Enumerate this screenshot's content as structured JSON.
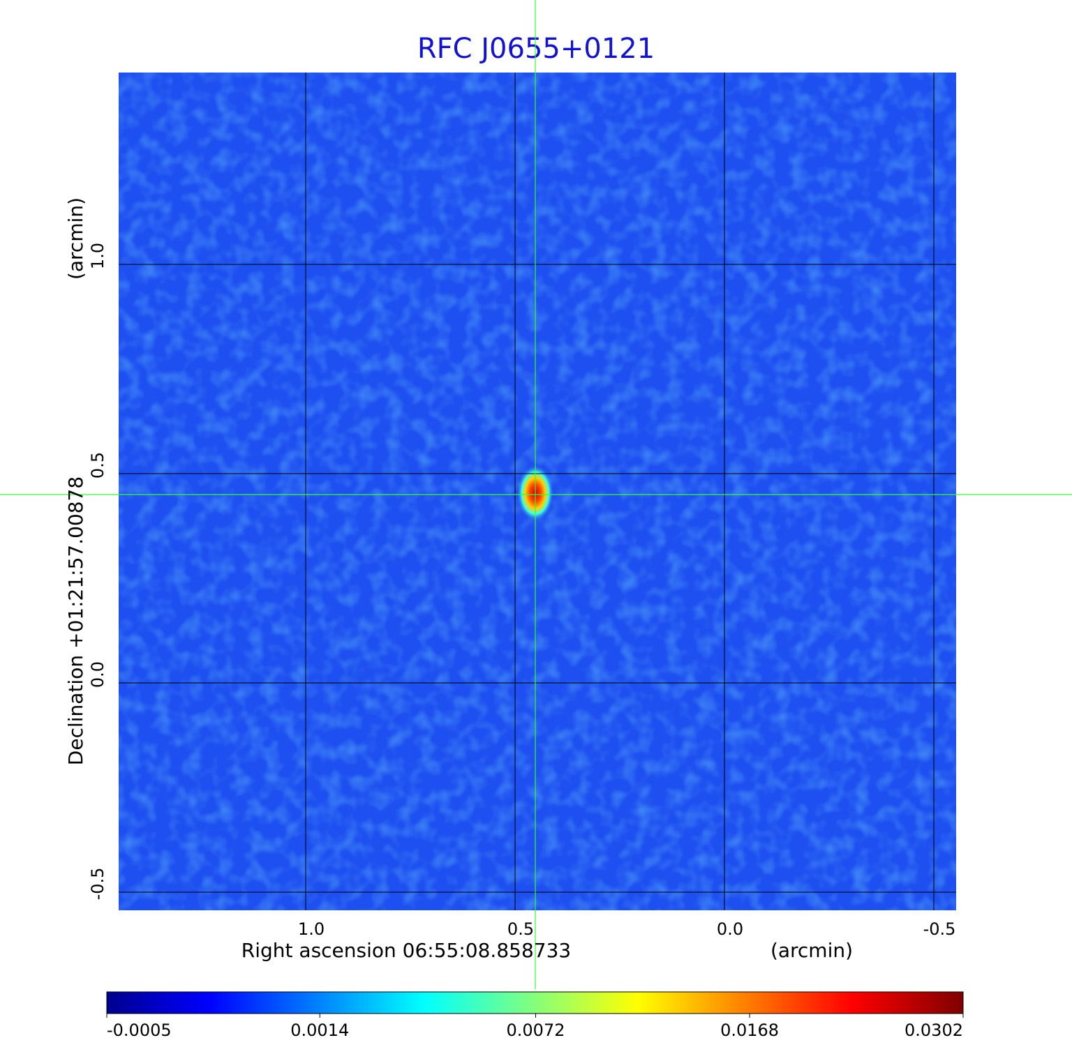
{
  "chart_data": {
    "type": "image",
    "title": "RFC J0655+0121",
    "x_label": "Right ascension  06:55:08.858733",
    "x_unit": "(arcmin)",
    "y_label": "Declination  +01:21:57.00878",
    "y_unit": "(arcmin)",
    "xlim": [
      1.4467,
      -0.5533
    ],
    "ylim": [
      -0.5433,
      1.4583
    ],
    "xticks": [
      {
        "value": 1,
        "label": "1.0"
      },
      0.5,
      {
        "value": 0,
        "label": "0.0"
      },
      -0.5
    ],
    "yticks": [
      -0.5,
      {
        "value": 0,
        "label": "0.0"
      },
      0.5,
      {
        "value": 1,
        "label": "1.0"
      }
    ],
    "grid": true,
    "colormap": "jet",
    "colorbar_scale": "sqrt",
    "clim": [
      -0.0005,
      0.0302
    ],
    "colorbar_ticks": [
      -0.0005,
      0.0014,
      0.0072,
      0.0168,
      0.0302
    ]
  }
}
